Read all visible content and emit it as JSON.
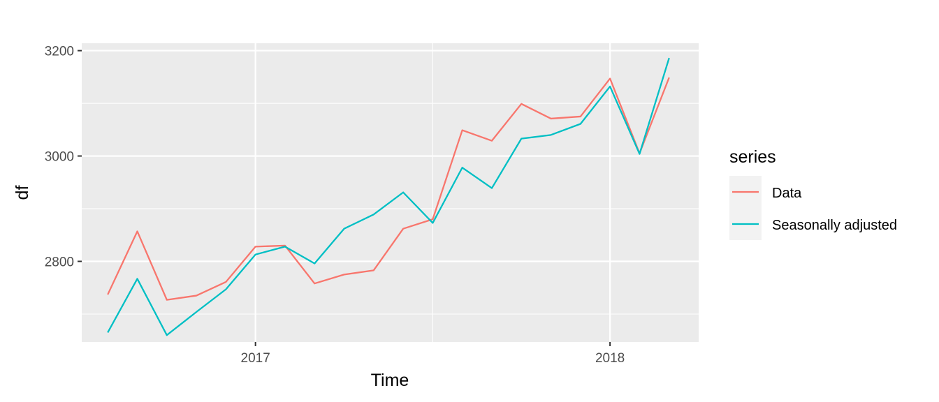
{
  "chart_data": {
    "type": "line",
    "xlabel": "Time",
    "ylabel": "df",
    "xlim": [
      2016.51,
      2018.25
    ],
    "ylim": [
      2647,
      3214
    ],
    "x_ticks": [
      2017,
      2018
    ],
    "x_tick_labels": [
      "2017",
      "2018"
    ],
    "x_minor_ticks": [
      2017.5
    ],
    "y_ticks": [
      2800,
      3000,
      3200
    ],
    "y_tick_labels": [
      "2800",
      "3000",
      "3200"
    ],
    "y_minor_ticks": [
      2700,
      2900,
      3100
    ],
    "grid": true,
    "legend": {
      "title": "series",
      "position": "right"
    },
    "x": [
      2016.5833,
      2016.6667,
      2016.75,
      2016.8333,
      2016.9167,
      2017.0,
      2017.0833,
      2017.1667,
      2017.25,
      2017.3333,
      2017.4167,
      2017.5,
      2017.5833,
      2017.6667,
      2017.75,
      2017.8333,
      2017.9167,
      2018.0,
      2018.0833,
      2018.1667
    ],
    "series": [
      {
        "name": "Data",
        "color": "#F8766D",
        "values": [
          2737,
          2857,
          2727,
          2735,
          2761,
          2828,
          2830,
          2758,
          2775,
          2783,
          2862,
          2880,
          3049,
          3029,
          3099,
          3071,
          3075,
          3147,
          3005,
          3149
        ]
      },
      {
        "name": "Seasonally adjusted",
        "color": "#00BFC4",
        "values": [
          2665,
          2767,
          2660,
          2704,
          2747,
          2813,
          2828,
          2796,
          2862,
          2889,
          2931,
          2873,
          2978,
          2939,
          3033,
          3040,
          3061,
          3132,
          3004,
          3186
        ]
      }
    ]
  }
}
